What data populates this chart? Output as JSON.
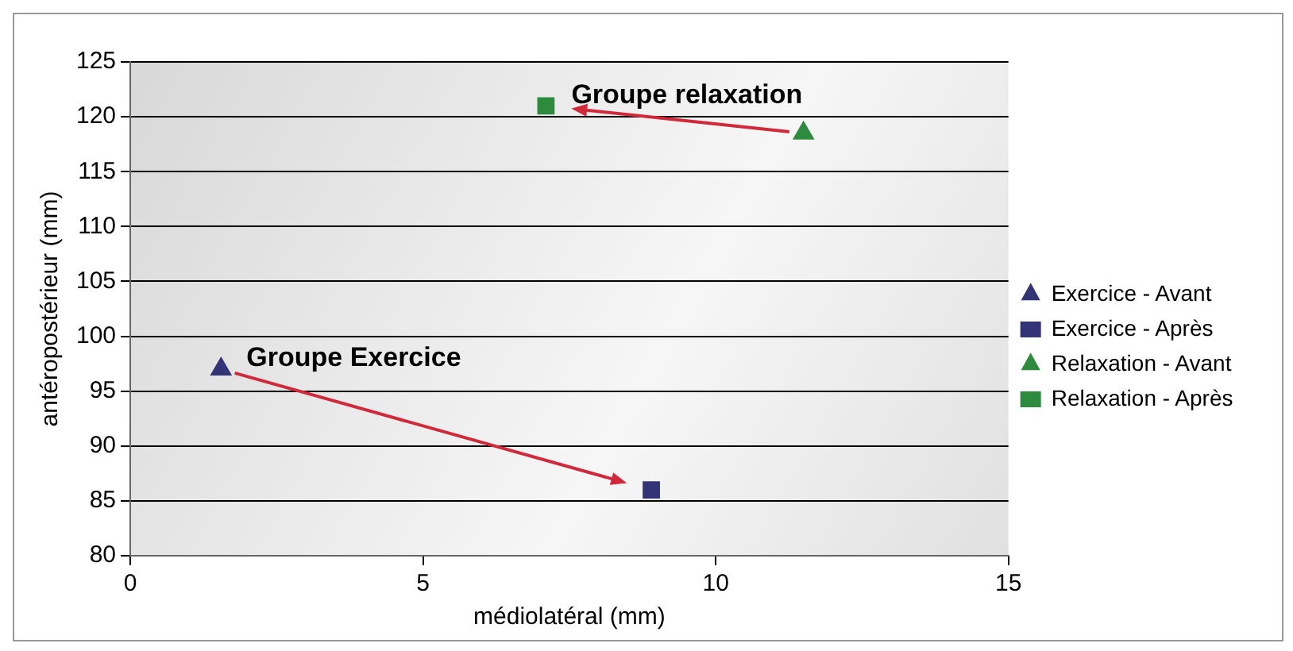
{
  "chart_data": {
    "type": "scatter",
    "xlabel": "médiolatéral (mm)",
    "ylabel": "antéropostérieur (mm)",
    "series": [
      {
        "name": "Exercice - Avant",
        "color": "#333377",
        "x": [
          1.55
        ],
        "values": [
          97
        ],
        "marker": "triangle"
      },
      {
        "name": "Exercice - Après",
        "color": "#333377",
        "x": [
          8.9
        ],
        "values": [
          86
        ],
        "marker": "square"
      },
      {
        "name": "Relaxation - Avant",
        "color": "#2e8b3e",
        "x": [
          11.5
        ],
        "values": [
          118.5
        ],
        "marker": "triangle"
      },
      {
        "name": "Relaxation - Après",
        "color": "#2e8b3e",
        "x": [
          7.1
        ],
        "values": [
          121
        ],
        "marker": "square"
      }
    ],
    "xlim": [
      0,
      15
    ],
    "xticks": [
      0,
      5,
      10,
      15
    ],
    "ylim": [
      80,
      125
    ],
    "yticks": [
      80,
      85,
      90,
      95,
      100,
      105,
      110,
      115,
      120,
      125
    ],
    "grid": "y",
    "legend": "right",
    "annotations": [
      {
        "text": "Groupe Exercice",
        "x": 1.55,
        "y": 97
      },
      {
        "text": "Groupe relaxation",
        "x": 7.1,
        "y": 121
      }
    ]
  }
}
